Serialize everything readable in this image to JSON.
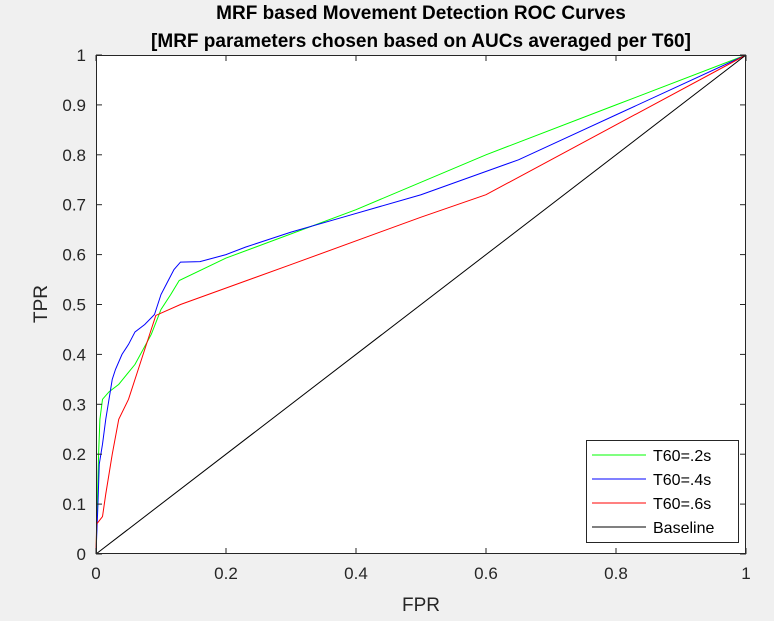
{
  "chart_data": {
    "type": "line",
    "title_line1": "MRF based Movement Detection ROC Curves",
    "title_line2": "[MRF parameters chosen based on AUCs averaged per T60]",
    "xlabel": "FPR",
    "ylabel": "TPR",
    "xlim": [
      0,
      1
    ],
    "ylim": [
      0,
      1
    ],
    "xticks": [
      0,
      0.2,
      0.4,
      0.6,
      0.8,
      1
    ],
    "xtick_labels": [
      "0",
      "0.2",
      "0.4",
      "0.6",
      "0.8",
      "1"
    ],
    "yticks": [
      0,
      0.1,
      0.2,
      0.3,
      0.4,
      0.5,
      0.6,
      0.7,
      0.8,
      0.9,
      1
    ],
    "ytick_labels": [
      "0",
      "0.1",
      "0.2",
      "0.3",
      "0.4",
      "0.5",
      "0.6",
      "0.7",
      "0.8",
      "0.9",
      "1"
    ],
    "grid": false,
    "legend_position": "bottom-right",
    "series": [
      {
        "name": "T60=.2s",
        "color": "#00ff00",
        "points": [
          [
            0,
            0
          ],
          [
            0.002,
            0.1
          ],
          [
            0.004,
            0.2
          ],
          [
            0.006,
            0.27
          ],
          [
            0.01,
            0.31
          ],
          [
            0.02,
            0.325
          ],
          [
            0.035,
            0.34
          ],
          [
            0.06,
            0.38
          ],
          [
            0.085,
            0.44
          ],
          [
            0.1,
            0.49
          ],
          [
            0.115,
            0.52
          ],
          [
            0.128,
            0.548
          ],
          [
            0.2,
            0.593
          ],
          [
            0.4,
            0.69
          ],
          [
            0.6,
            0.8
          ],
          [
            0.8,
            0.9
          ],
          [
            1,
            1
          ]
        ]
      },
      {
        "name": "T60=.4s",
        "color": "#0000ff",
        "points": [
          [
            0,
            0
          ],
          [
            0.003,
            0.1
          ],
          [
            0.005,
            0.18
          ],
          [
            0.01,
            0.22
          ],
          [
            0.015,
            0.27
          ],
          [
            0.02,
            0.31
          ],
          [
            0.025,
            0.35
          ],
          [
            0.03,
            0.37
          ],
          [
            0.04,
            0.4
          ],
          [
            0.05,
            0.42
          ],
          [
            0.06,
            0.445
          ],
          [
            0.075,
            0.46
          ],
          [
            0.09,
            0.48
          ],
          [
            0.1,
            0.52
          ],
          [
            0.11,
            0.545
          ],
          [
            0.12,
            0.57
          ],
          [
            0.13,
            0.585
          ],
          [
            0.16,
            0.586
          ],
          [
            0.2,
            0.6
          ],
          [
            0.23,
            0.615
          ],
          [
            0.3,
            0.645
          ],
          [
            0.38,
            0.675
          ],
          [
            0.5,
            0.72
          ],
          [
            0.65,
            0.79
          ],
          [
            0.8,
            0.88
          ],
          [
            1,
            1
          ]
        ]
      },
      {
        "name": "T60=.6s",
        "color": "#ff0000",
        "points": [
          [
            0,
            0
          ],
          [
            0.001,
            0.06
          ],
          [
            0.01,
            0.075
          ],
          [
            0.015,
            0.12
          ],
          [
            0.025,
            0.2
          ],
          [
            0.035,
            0.27
          ],
          [
            0.05,
            0.31
          ],
          [
            0.07,
            0.39
          ],
          [
            0.092,
            0.478
          ],
          [
            0.13,
            0.5
          ],
          [
            0.3,
            0.58
          ],
          [
            0.5,
            0.675
          ],
          [
            0.6,
            0.72
          ],
          [
            0.7,
            0.79
          ],
          [
            1,
            1
          ]
        ]
      },
      {
        "name": "Baseline",
        "color": "#000000",
        "points": [
          [
            0,
            0
          ],
          [
            1,
            1
          ]
        ]
      }
    ]
  }
}
